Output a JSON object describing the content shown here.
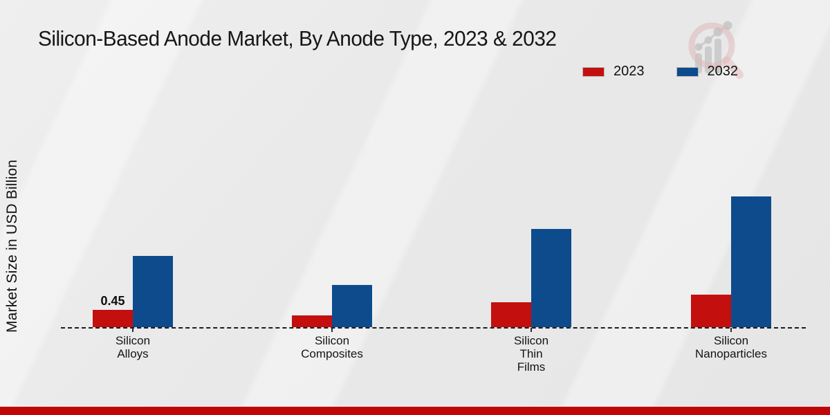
{
  "page": {
    "title": "Silicon-Based Anode Market, By Anode Type, 2023 & 2032",
    "y_axis_label": "Market Size in USD Billion"
  },
  "colors": {
    "series_2023": "#c40f0f",
    "series_2032": "#0d4b8c",
    "footer_bar": "#c00606",
    "background": "#e9e9e9",
    "axis": "#1b1b1b",
    "watermark_ring": "#dfb3b5",
    "watermark_bars": "#c3c3c3"
  },
  "legend": {
    "items": [
      {
        "label": "2023",
        "color": "#c40f0f"
      },
      {
        "label": "2032",
        "color": "#0d4b8c"
      }
    ]
  },
  "watermark": {
    "icon": "magnifier-bar-chart-logo"
  },
  "chart_data": {
    "type": "bar",
    "title": "Silicon-Based Anode Market, By Anode Type, 2023 & 2032",
    "xlabel": "",
    "ylabel": "Market Size in USD Billion",
    "categories": [
      "Silicon Alloys",
      "Silicon Composites",
      "Silicon Thin Films",
      "Silicon Nanoparticles"
    ],
    "category_lines": [
      [
        "Silicon",
        "Alloys"
      ],
      [
        "Silicon",
        "Composites"
      ],
      [
        "Silicon",
        "Thin",
        "Films"
      ],
      [
        "Silicon",
        "Nanoparticles"
      ]
    ],
    "series": [
      {
        "name": "2023",
        "color": "#c40f0f",
        "values": [
          0.45,
          0.3,
          0.65,
          0.85
        ]
      },
      {
        "name": "2032",
        "color": "#0d4b8c",
        "values": [
          1.85,
          1.1,
          2.55,
          3.4
        ]
      }
    ],
    "annotations": [
      {
        "series": "2023",
        "category": "Silicon Alloys",
        "text": "0.45"
      }
    ],
    "ylim": [
      0,
      4
    ],
    "grid": false,
    "y_axis_ticks_visible": false,
    "legend_position": "top-right",
    "baseline_style": "dashed"
  }
}
